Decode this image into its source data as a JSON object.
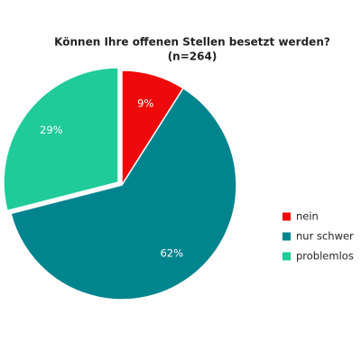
{
  "chart_data": {
    "type": "pie",
    "title": "Können Ihre offenen Stellen besetzt werden?",
    "subtitle": "(n=264)",
    "categories": [
      "nein",
      "nur schwer",
      "problemlos"
    ],
    "values": [
      9,
      62,
      29
    ],
    "value_labels": [
      "9%",
      "62%",
      "29%"
    ],
    "colors": [
      "#ee0a0a",
      "#00848e",
      "#1fcb98"
    ],
    "legend": "right",
    "exploded": [
      false,
      false,
      true
    ]
  }
}
